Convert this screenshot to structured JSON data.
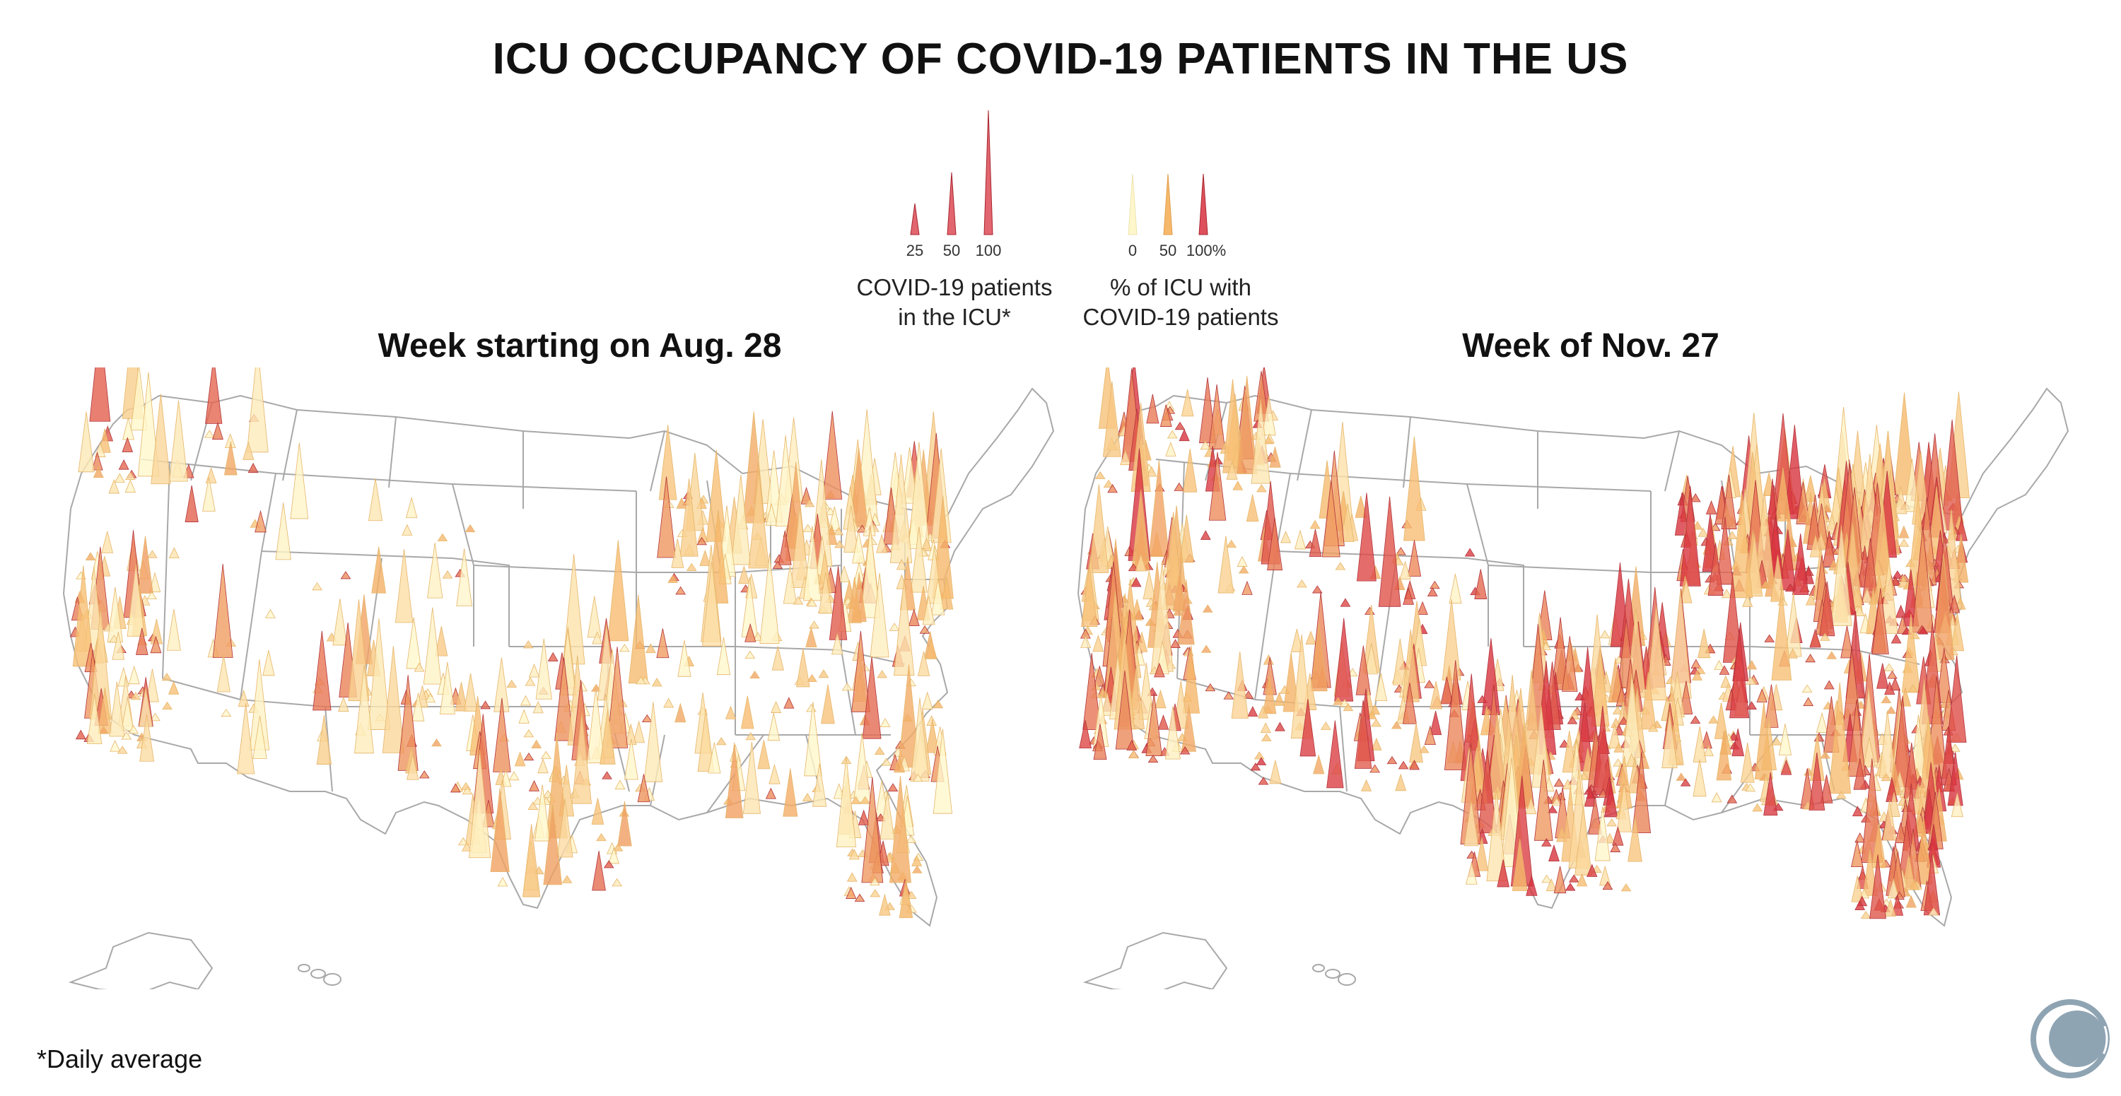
{
  "title": "ICU OCCUPANCY OF COVID-19 PATIENTS IN THE US",
  "legend": {
    "size_title_line1": "COVID-19 patients",
    "size_title_line2": "in the ICU*",
    "size_ticks": [
      {
        "label": "25",
        "patients": 25
      },
      {
        "label": "50",
        "patients": 50
      },
      {
        "label": "100",
        "patients": 100
      }
    ],
    "color_title_line1": "% of ICU with",
    "color_title_line2": "COVID-19 patients",
    "color_ticks": [
      {
        "label": "0",
        "percent": 0,
        "color": "#fff7cc"
      },
      {
        "label": "50",
        "percent": 50,
        "color": "#f6b86a"
      },
      {
        "label": "100%",
        "percent": 100,
        "color": "#d8333f"
      }
    ]
  },
  "maps": [
    {
      "id": "aug",
      "title": "Week starting on Aug. 28"
    },
    {
      "id": "nov",
      "title": "Week of Nov. 27"
    }
  ],
  "colors": {
    "low": "#fff7cc",
    "mid": "#f6b86a",
    "high": "#d8333f",
    "border": "#a8a8a8"
  },
  "footnote": "*Daily average",
  "logo_icon": "circle-logo-icon"
}
